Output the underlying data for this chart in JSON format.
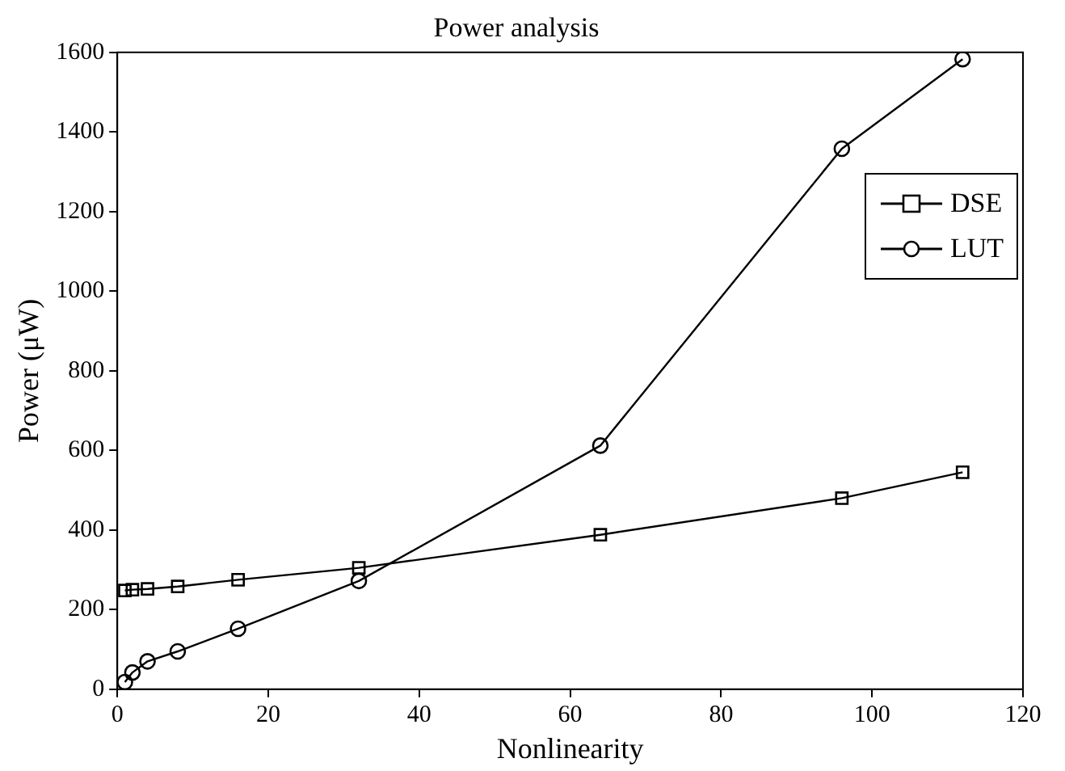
{
  "chart_data": {
    "type": "line",
    "title": "Power analysis",
    "xlabel": "Nonlinearity",
    "ylabel": "Power (μW)",
    "xlim": [
      0,
      120
    ],
    "xticks": [
      0,
      20,
      40,
      60,
      80,
      100,
      120
    ],
    "ylim": [
      0,
      1600
    ],
    "yticks": [
      0,
      200,
      400,
      600,
      800,
      1000,
      1200,
      1400,
      1600
    ],
    "grid": false,
    "legend": "top right",
    "line_style": "solid",
    "series": [
      {
        "name": "DSE",
        "color": "#000000",
        "marker": "square",
        "x": [
          1,
          2,
          4,
          8,
          16,
          32,
          64,
          96,
          112
        ],
        "values": [
          248,
          250,
          252,
          258,
          275,
          305,
          388,
          480,
          545
        ]
      },
      {
        "name": "LUT",
        "color": "#000000",
        "marker": "circle",
        "x": [
          1,
          2,
          4,
          8,
          16,
          32,
          64,
          96,
          112
        ],
        "values": [
          18,
          42,
          70,
          95,
          152,
          272,
          612,
          1358,
          1583
        ]
      }
    ]
  }
}
